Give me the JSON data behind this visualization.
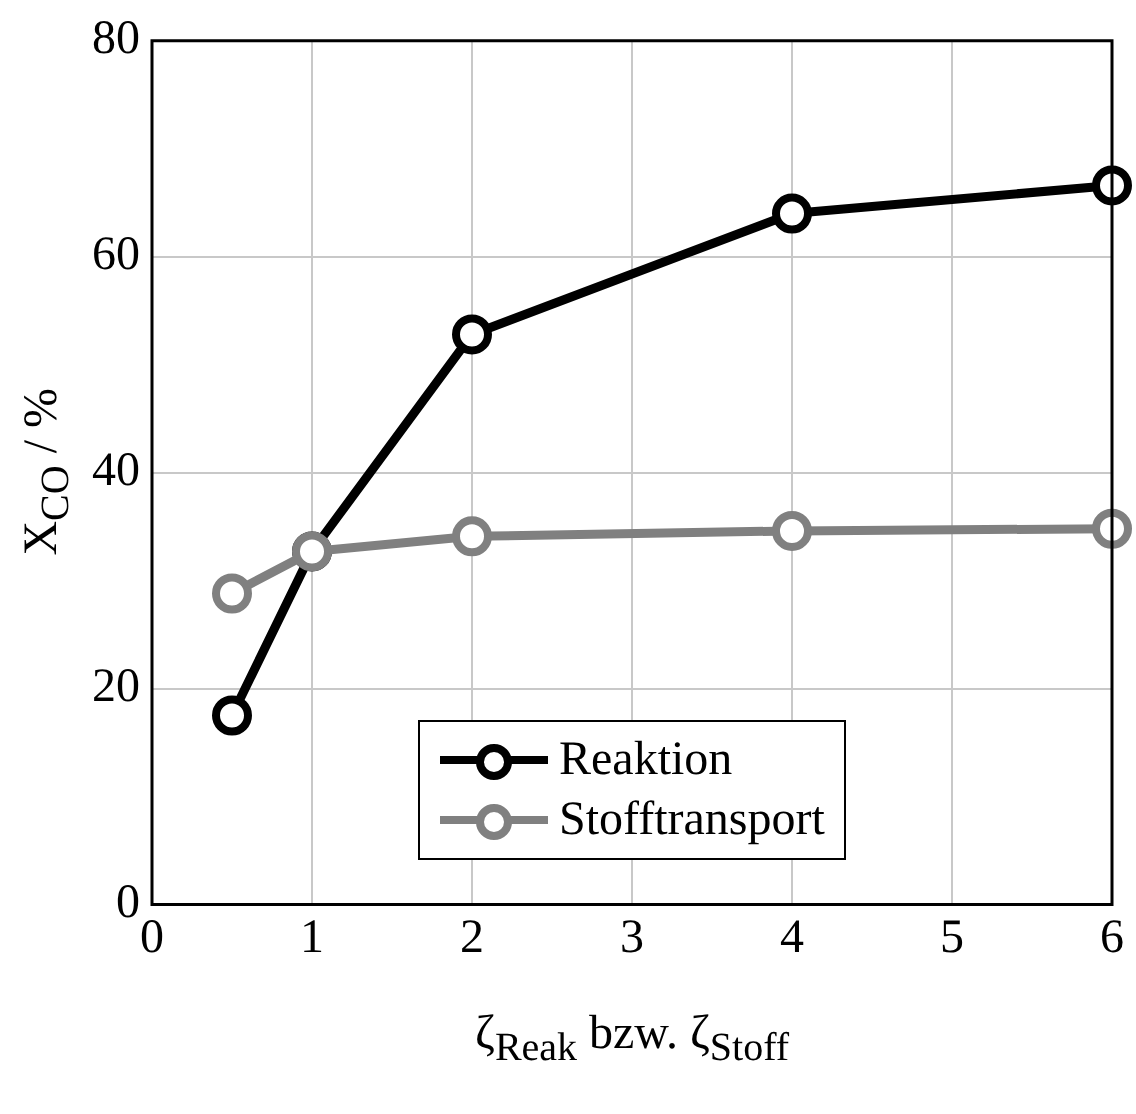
{
  "chart_data": {
    "type": "line",
    "xlabel": "ζ$_{Reak}$ bzw. ζ$_{Stoff}$",
    "ylabel": "X$_{CO}$ / %",
    "x": [
      0.5,
      1,
      2,
      4,
      6
    ],
    "series": [
      {
        "name": "Reaktion",
        "color": "#000000",
        "values": [
          17.5,
          32.7,
          52.8,
          64,
          66.6
        ]
      },
      {
        "name": "Stofftransport",
        "color": "#808080",
        "values": [
          28.8,
          32.7,
          34.1,
          34.6,
          34.8
        ]
      }
    ],
    "xlim": [
      0,
      6
    ],
    "xticks": [
      0,
      1,
      2,
      3,
      4,
      5,
      6
    ],
    "ylim": [
      0,
      80
    ],
    "yticks": [
      0,
      20,
      40,
      60,
      80
    ],
    "grid": true,
    "legend": "bottom",
    "marker": "circle",
    "line_style": "solid"
  }
}
